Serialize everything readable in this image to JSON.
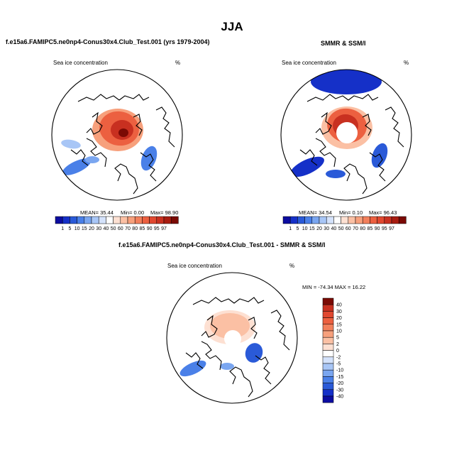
{
  "page_title": "JJA",
  "palette": {
    "abs": [
      "#0c0ca0",
      "#1530c8",
      "#2a5ad8",
      "#4a80e8",
      "#7aa6f0",
      "#a8c6f6",
      "#d4e2fb",
      "#ffffff",
      "#fde0d2",
      "#fbc0a4",
      "#f7a07c",
      "#f2805c",
      "#ec6040",
      "#e04830",
      "#c83020",
      "#a81c10",
      "#7a0a04"
    ],
    "diff": [
      "#0c0ca0",
      "#1530c8",
      "#2a5ad8",
      "#4a80e8",
      "#7aa6f0",
      "#a8c6f6",
      "#d4e2fb",
      "#ffffff",
      "#fde0d2",
      "#fbc0a4",
      "#f7a07c",
      "#f2805c",
      "#ec6040",
      "#e04830",
      "#c83020",
      "#7a0a04"
    ],
    "land_line": "#000000",
    "hole": "#ffffff"
  },
  "chart_data": [
    {
      "type": "heatmap",
      "title": "f.e15a6.FAMIPC5.ne0np4-Conus30x4.Club_Test.001 (yrs 1979-2004)",
      "variable": "Sea ice concentration",
      "units": "%",
      "stats": {
        "mean": "MEAN=  35.44",
        "min": "Min=   0.00",
        "max": "Max=   98.90"
      },
      "colorbar_labels": [
        "1",
        "5",
        "10",
        "15",
        "20",
        "30",
        "40",
        "50",
        "60",
        "70",
        "80",
        "85",
        "90",
        "95",
        "97"
      ],
      "features": {
        "central_max": true,
        "pole_hole": false,
        "max_value": 98.9
      }
    },
    {
      "type": "heatmap",
      "title": "SMMR & SSM/I",
      "variable": "Sea ice concentration",
      "units": "%",
      "stats": {
        "mean": "MEAN=  34.54",
        "min": "Min=   0.10",
        "max": "Max=   96.43"
      },
      "colorbar_labels": [
        "1",
        "5",
        "10",
        "15",
        "20",
        "30",
        "40",
        "50",
        "60",
        "70",
        "80",
        "85",
        "90",
        "95",
        "97"
      ],
      "features": {
        "central_max": false,
        "pole_hole": true,
        "max_value": 96.43
      }
    },
    {
      "type": "heatmap",
      "title": "f.e15a6.FAMIPC5.ne0np4-Conus30x4.Club_Test.001 - SMMR & SSM/I",
      "variable": "Sea ice concentration",
      "units": "%",
      "stats": {
        "minmax": "MIN = -74.34  MAX =  16.22"
      },
      "colorbar_labels": [
        "40",
        "30",
        "20",
        "15",
        "10",
        "5",
        "2",
        "0",
        "-2",
        "-5",
        "-10",
        "-15",
        "-20",
        "-30",
        "-40"
      ],
      "features": {
        "pole_hole": true,
        "min_value": -74.34,
        "max_value": 16.22
      }
    }
  ]
}
